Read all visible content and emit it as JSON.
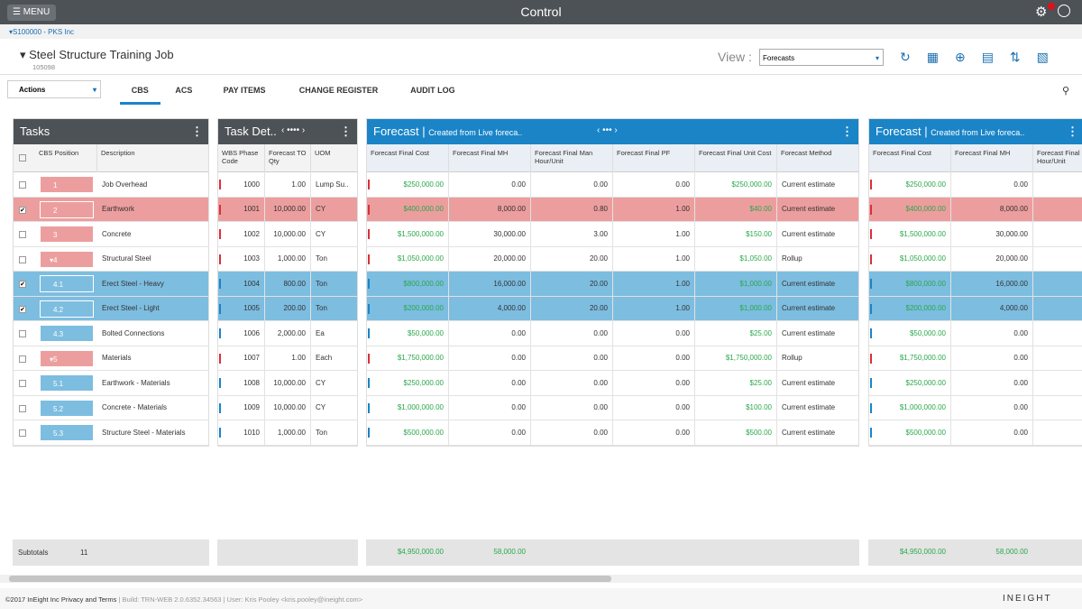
{
  "header": {
    "menu": "MENU",
    "title": "Control"
  },
  "breadcrumb": "S100000 - PKS Inc",
  "job": {
    "title": "Steel Structure Training Job",
    "code": "105098"
  },
  "view": {
    "label": "View :",
    "selected": "Forecasts"
  },
  "actions": "Actions",
  "tabs": [
    "CBS",
    "ACS",
    "PAY ITEMS",
    "CHANGE REGISTER",
    "AUDIT LOG"
  ],
  "active_tab": 0,
  "tasks": {
    "title": "Tasks",
    "columns": [
      "CBS Position",
      "Description"
    ]
  },
  "task_details": {
    "title": "Task Det..",
    "columns": [
      "WBS Phase Code",
      "Forecast TO Qty",
      "UOM"
    ]
  },
  "forecast": {
    "title": "Forecast",
    "subtitle": "Created from Live foreca..",
    "columns": [
      "Forecast Final Cost",
      "Forecast Final MH",
      "Forecast Final Man Hour/Unit",
      "Forecast Final PF",
      "Forecast Final Unit Cost",
      "Forecast Method"
    ]
  },
  "rows": [
    {
      "position": "1",
      "description": "Job Overhead",
      "wbs": "1000",
      "qty": "1.00",
      "uom": "Lump Su..",
      "cost": "$250,000.00",
      "mh": "0.00",
      "mhu": "0.00",
      "pf": "0.00",
      "unit_cost": "$250,000.00",
      "method": "Current estimate",
      "color": "#ec9e9e",
      "checked": false
    },
    {
      "position": "2",
      "description": "Earthwork",
      "wbs": "1001",
      "qty": "10,000.00",
      "uom": "CY",
      "cost": "$400,000.00",
      "mh": "8,000.00",
      "mhu": "0.80",
      "pf": "1.00",
      "unit_cost": "$40.00",
      "method": "Current estimate",
      "color": "#ec9e9e",
      "checked": true
    },
    {
      "position": "3",
      "description": "Concrete",
      "wbs": "1002",
      "qty": "10,000.00",
      "uom": "CY",
      "cost": "$1,500,000.00",
      "mh": "30,000.00",
      "mhu": "3.00",
      "pf": "1.00",
      "unit_cost": "$150.00",
      "method": "Current estimate",
      "color": "#ec9e9e",
      "checked": false
    },
    {
      "position": "4",
      "description": "Structural Steel",
      "wbs": "1003",
      "qty": "1,000.00",
      "uom": "Ton",
      "cost": "$1,050,000.00",
      "mh": "20,000.00",
      "mhu": "20.00",
      "pf": "1.00",
      "unit_cost": "$1,050.00",
      "method": "Rollup",
      "color": "#ec9e9e",
      "checked": false,
      "expanded": true
    },
    {
      "position": "4.1",
      "description": "Erect Steel - Heavy",
      "wbs": "1004",
      "qty": "800.00",
      "uom": "Ton",
      "cost": "$800,000.00",
      "mh": "16,000.00",
      "mhu": "20.00",
      "pf": "1.00",
      "unit_cost": "$1,000.00",
      "method": "Current estimate",
      "color": "#7dbde0",
      "checked": true
    },
    {
      "position": "4.2",
      "description": "Erect Steel - Light",
      "wbs": "1005",
      "qty": "200.00",
      "uom": "Ton",
      "cost": "$200,000.00",
      "mh": "4,000.00",
      "mhu": "20.00",
      "pf": "1.00",
      "unit_cost": "$1,000.00",
      "method": "Current estimate",
      "color": "#7dbde0",
      "checked": true
    },
    {
      "position": "4.3",
      "description": "Bolted Connections",
      "wbs": "1006",
      "qty": "2,000.00",
      "uom": "Ea",
      "cost": "$50,000.00",
      "mh": "0.00",
      "mhu": "0.00",
      "pf": "0.00",
      "unit_cost": "$25.00",
      "method": "Current estimate",
      "color": "#7dbde0",
      "checked": false
    },
    {
      "position": "5",
      "description": "Materials",
      "wbs": "1007",
      "qty": "1.00",
      "uom": "Each",
      "cost": "$1,750,000.00",
      "mh": "0.00",
      "mhu": "0.00",
      "pf": "0.00",
      "unit_cost": "$1,750,000.00",
      "method": "Rollup",
      "color": "#ec9e9e",
      "checked": false,
      "expanded": true
    },
    {
      "position": "5.1",
      "description": "Earthwork - Materials",
      "wbs": "1008",
      "qty": "10,000.00",
      "uom": "CY",
      "cost": "$250,000.00",
      "mh": "0.00",
      "mhu": "0.00",
      "pf": "0.00",
      "unit_cost": "$25.00",
      "method": "Current estimate",
      "color": "#7dbde0",
      "checked": false
    },
    {
      "position": "5.2",
      "description": "Concrete - Materials",
      "wbs": "1009",
      "qty": "10,000.00",
      "uom": "CY",
      "cost": "$1,000,000.00",
      "mh": "0.00",
      "mhu": "0.00",
      "pf": "0.00",
      "unit_cost": "$100.00",
      "method": "Current estimate",
      "color": "#7dbde0",
      "checked": false
    },
    {
      "position": "5.3",
      "description": "Structure Steel - Materials",
      "wbs": "1010",
      "qty": "1,000.00",
      "uom": "Ton",
      "cost": "$500,000.00",
      "mh": "0.00",
      "mhu": "0.00",
      "pf": "0.00",
      "unit_cost": "$500.00",
      "method": "Current estimate",
      "color": "#7dbde0",
      "checked": false
    }
  ],
  "subtotals": {
    "label": "Subtotals",
    "count": "11",
    "cost": "$4,950,000.00",
    "mh": "58,000.00"
  },
  "footer": {
    "copyright": "©2017 InEight Inc Privacy and Terms",
    "build": "| Build: TRN-WEB 2.0.6352.34563 | User: Kris Pooley <kris.pooley@ineight.com>",
    "brand": "INEIGHT"
  }
}
